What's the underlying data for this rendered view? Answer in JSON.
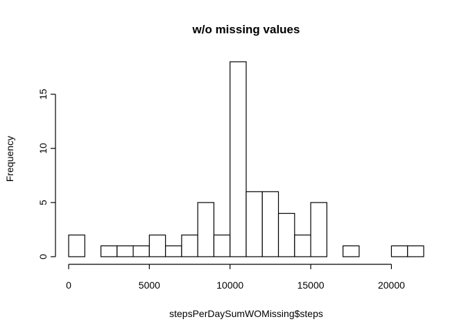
{
  "chart_data": {
    "type": "bar",
    "title": "w/o missing values",
    "xlabel": "stepsPerDaySumWOMissing$steps",
    "ylabel": "Frequency",
    "bin_width": 1000,
    "bins_start": [
      0,
      1000,
      2000,
      3000,
      4000,
      5000,
      6000,
      7000,
      8000,
      9000,
      10000,
      11000,
      12000,
      13000,
      14000,
      15000,
      16000,
      17000,
      18000,
      19000,
      20000,
      21000
    ],
    "values": [
      2,
      0,
      1,
      1,
      1,
      2,
      1,
      2,
      5,
      2,
      18,
      6,
      6,
      4,
      2,
      5,
      0,
      1,
      0,
      0,
      1,
      1
    ],
    "xlim": [
      0,
      22000
    ],
    "ylim": [
      0,
      18
    ],
    "x_ticks": [
      0,
      5000,
      10000,
      15000,
      20000
    ],
    "y_ticks": [
      0,
      5,
      10,
      15
    ],
    "grid": false,
    "legend": "none",
    "bar_fill": "#ffffff",
    "bar_stroke": "#000000"
  }
}
